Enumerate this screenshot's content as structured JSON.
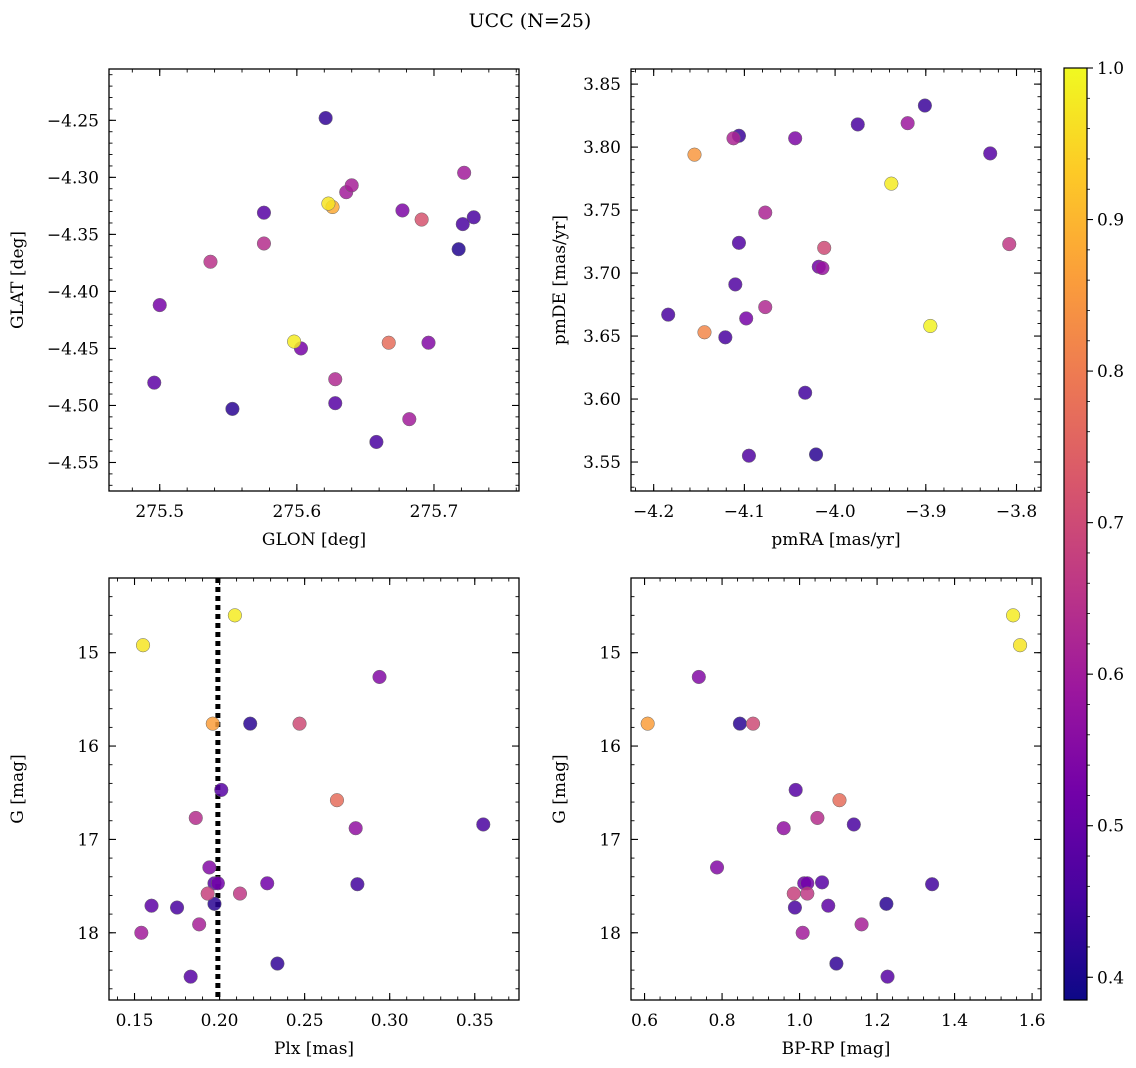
{
  "figure_title": "UCC (N=25)",
  "colorbar": {
    "min": 0.385,
    "max": 1.0,
    "ticks": [
      0.4,
      0.5,
      0.6,
      0.7,
      0.8,
      0.9,
      1.0
    ],
    "tick_labels": [
      "0.4",
      "0.5",
      "0.6",
      "0.7",
      "0.8",
      "0.9",
      "1.0"
    ],
    "colormap": "plasma",
    "stops": [
      "#0d0887",
      "#46039f",
      "#7201a8",
      "#9c179e",
      "#bd3786",
      "#d8576b",
      "#ed7953",
      "#fb9f3a",
      "#fdca26",
      "#f0f921"
    ]
  },
  "chart_data": [
    {
      "type": "scatter",
      "id": "glon-glat",
      "xlabel": "GLON [deg]",
      "ylabel": "GLAT [deg]",
      "xlim": [
        275.463,
        275.762
      ],
      "ylim": [
        -4.575,
        -4.205
      ],
      "y_inverted": false,
      "xticks": [
        275.5,
        275.6,
        275.7
      ],
      "xtick_labels": [
        "275.5",
        "275.6",
        "275.7"
      ],
      "yticks": [
        -4.25,
        -4.3,
        -4.35,
        -4.4,
        -4.45,
        -4.5,
        -4.55
      ],
      "ytick_labels": [
        "−4.25",
        "−4.30",
        "−4.35",
        "−4.40",
        "−4.45",
        "−4.50",
        "−4.55"
      ],
      "points": [
        {
          "x": 275.621,
          "y": -4.248,
          "p": 0.43
        },
        {
          "x": 275.64,
          "y": -4.307,
          "p": 0.61
        },
        {
          "x": 275.636,
          "y": -4.313,
          "p": 0.6
        },
        {
          "x": 275.623,
          "y": -4.323,
          "p": 0.97
        },
        {
          "x": 275.626,
          "y": -4.326,
          "p": 0.88
        },
        {
          "x": 275.722,
          "y": -4.296,
          "p": 0.6
        },
        {
          "x": 275.576,
          "y": -4.331,
          "p": 0.48
        },
        {
          "x": 275.677,
          "y": -4.329,
          "p": 0.54
        },
        {
          "x": 275.691,
          "y": -4.337,
          "p": 0.72
        },
        {
          "x": 275.729,
          "y": -4.335,
          "p": 0.46
        },
        {
          "x": 275.721,
          "y": -4.341,
          "p": 0.46
        },
        {
          "x": 275.576,
          "y": -4.358,
          "p": 0.64
        },
        {
          "x": 275.718,
          "y": -4.363,
          "p": 0.41
        },
        {
          "x": 275.537,
          "y": -4.374,
          "p": 0.65
        },
        {
          "x": 275.5,
          "y": -4.412,
          "p": 0.53
        },
        {
          "x": 275.598,
          "y": -4.444,
          "p": 0.98
        },
        {
          "x": 275.603,
          "y": -4.45,
          "p": 0.53
        },
        {
          "x": 275.667,
          "y": -4.445,
          "p": 0.77
        },
        {
          "x": 275.696,
          "y": -4.445,
          "p": 0.55
        },
        {
          "x": 275.496,
          "y": -4.48,
          "p": 0.49
        },
        {
          "x": 275.628,
          "y": -4.477,
          "p": 0.63
        },
        {
          "x": 275.628,
          "y": -4.498,
          "p": 0.48
        },
        {
          "x": 275.553,
          "y": -4.503,
          "p": 0.42
        },
        {
          "x": 275.682,
          "y": -4.512,
          "p": 0.6
        },
        {
          "x": 275.658,
          "y": -4.532,
          "p": 0.46
        }
      ]
    },
    {
      "type": "scatter",
      "id": "pmra-pmde",
      "xlabel": "pmRA [mas/yr]",
      "ylabel": "pmDE [mas/yr]",
      "xlim": [
        -4.225,
        -3.773
      ],
      "ylim": [
        3.527,
        3.862
      ],
      "y_inverted": false,
      "xticks": [
        -4.2,
        -4.1,
        -4.0,
        -3.9,
        -3.8
      ],
      "xtick_labels": [
        "−4.2",
        "−4.1",
        "−4.0",
        "−3.9",
        "−3.8"
      ],
      "yticks": [
        3.55,
        3.6,
        3.65,
        3.7,
        3.75,
        3.8,
        3.85
      ],
      "ytick_labels": [
        "3.55",
        "3.60",
        "3.65",
        "3.70",
        "3.75",
        "3.80",
        "3.85"
      ],
      "points": [
        {
          "x": -3.901,
          "y": 3.833,
          "p": 0.44
        },
        {
          "x": -3.975,
          "y": 3.818,
          "p": 0.46
        },
        {
          "x": -3.92,
          "y": 3.819,
          "p": 0.59
        },
        {
          "x": -4.106,
          "y": 3.809,
          "p": 0.44
        },
        {
          "x": -4.112,
          "y": 3.807,
          "p": 0.62
        },
        {
          "x": -4.044,
          "y": 3.807,
          "p": 0.54
        },
        {
          "x": -4.155,
          "y": 3.794,
          "p": 0.85
        },
        {
          "x": -3.829,
          "y": 3.795,
          "p": 0.48
        },
        {
          "x": -3.938,
          "y": 3.771,
          "p": 0.98
        },
        {
          "x": -4.077,
          "y": 3.748,
          "p": 0.62
        },
        {
          "x": -4.106,
          "y": 3.724,
          "p": 0.47
        },
        {
          "x": -3.808,
          "y": 3.723,
          "p": 0.66
        },
        {
          "x": -4.012,
          "y": 3.72,
          "p": 0.7
        },
        {
          "x": -4.018,
          "y": 3.705,
          "p": 0.52
        },
        {
          "x": -4.014,
          "y": 3.704,
          "p": 0.58
        },
        {
          "x": -4.11,
          "y": 3.691,
          "p": 0.47
        },
        {
          "x": -4.184,
          "y": 3.667,
          "p": 0.46
        },
        {
          "x": -4.077,
          "y": 3.673,
          "p": 0.63
        },
        {
          "x": -4.098,
          "y": 3.664,
          "p": 0.53
        },
        {
          "x": -3.895,
          "y": 3.658,
          "p": 0.99
        },
        {
          "x": -4.144,
          "y": 3.653,
          "p": 0.82
        },
        {
          "x": -4.121,
          "y": 3.649,
          "p": 0.46
        },
        {
          "x": -4.033,
          "y": 3.605,
          "p": 0.45
        },
        {
          "x": -4.021,
          "y": 3.556,
          "p": 0.42
        },
        {
          "x": -4.095,
          "y": 3.555,
          "p": 0.47
        }
      ]
    },
    {
      "type": "scatter",
      "id": "plx-g",
      "xlabel": "Plx [mas]",
      "ylabel": "G [mag]",
      "xlim": [
        0.135,
        0.376
      ],
      "ylim": [
        18.72,
        14.2
      ],
      "y_inverted": true,
      "xticks": [
        0.15,
        0.2,
        0.25,
        0.3,
        0.35
      ],
      "xtick_labels": [
        "0.15",
        "0.20",
        "0.25",
        "0.30",
        "0.35"
      ],
      "yticks": [
        15,
        16,
        17,
        18
      ],
      "ytick_labels": [
        "15",
        "16",
        "17",
        "18"
      ],
      "vline": {
        "x": 0.199,
        "style": "dotted"
      },
      "points": [
        {
          "x": 0.209,
          "y": 14.6,
          "p": 0.98
        },
        {
          "x": 0.155,
          "y": 14.92,
          "p": 0.97
        },
        {
          "x": 0.294,
          "y": 15.26,
          "p": 0.55
        },
        {
          "x": 0.196,
          "y": 15.76,
          "p": 0.86
        },
        {
          "x": 0.218,
          "y": 15.76,
          "p": 0.42
        },
        {
          "x": 0.247,
          "y": 15.76,
          "p": 0.7
        },
        {
          "x": 0.201,
          "y": 16.47,
          "p": 0.48
        },
        {
          "x": 0.269,
          "y": 16.58,
          "p": 0.77
        },
        {
          "x": 0.186,
          "y": 16.77,
          "p": 0.64
        },
        {
          "x": 0.355,
          "y": 16.84,
          "p": 0.46
        },
        {
          "x": 0.28,
          "y": 16.88,
          "p": 0.57
        },
        {
          "x": 0.194,
          "y": 17.3,
          "p": 0.55
        },
        {
          "x": 0.197,
          "y": 17.47,
          "p": 0.48
        },
        {
          "x": 0.199,
          "y": 17.47,
          "p": 0.52
        },
        {
          "x": 0.228,
          "y": 17.47,
          "p": 0.52
        },
        {
          "x": 0.281,
          "y": 17.48,
          "p": 0.45
        },
        {
          "x": 0.193,
          "y": 17.58,
          "p": 0.68
        },
        {
          "x": 0.212,
          "y": 17.58,
          "p": 0.66
        },
        {
          "x": 0.197,
          "y": 17.69,
          "p": 0.42
        },
        {
          "x": 0.16,
          "y": 17.71,
          "p": 0.49
        },
        {
          "x": 0.175,
          "y": 17.73,
          "p": 0.46
        },
        {
          "x": 0.188,
          "y": 17.91,
          "p": 0.61
        },
        {
          "x": 0.154,
          "y": 18.0,
          "p": 0.6
        },
        {
          "x": 0.234,
          "y": 18.33,
          "p": 0.43
        },
        {
          "x": 0.183,
          "y": 18.47,
          "p": 0.48
        }
      ]
    },
    {
      "type": "scatter",
      "id": "bprp-g",
      "xlabel": "BP-RP [mag]",
      "ylabel": "G [mag]",
      "xlim": [
        0.565,
        1.623
      ],
      "ylim": [
        18.72,
        14.2
      ],
      "y_inverted": true,
      "xticks": [
        0.6,
        0.8,
        1.0,
        1.2,
        1.4,
        1.6
      ],
      "xtick_labels": [
        "0.6",
        "0.8",
        "1.0",
        "1.2",
        "1.4",
        "1.6"
      ],
      "yticks": [
        15,
        16,
        17,
        18
      ],
      "ytick_labels": [
        "15",
        "16",
        "17",
        "18"
      ],
      "points": [
        {
          "x": 1.551,
          "y": 14.6,
          "p": 0.98
        },
        {
          "x": 1.569,
          "y": 14.92,
          "p": 0.97
        },
        {
          "x": 0.74,
          "y": 15.26,
          "p": 0.55
        },
        {
          "x": 0.608,
          "y": 15.76,
          "p": 0.86
        },
        {
          "x": 0.846,
          "y": 15.76,
          "p": 0.42
        },
        {
          "x": 0.88,
          "y": 15.76,
          "p": 0.7
        },
        {
          "x": 0.99,
          "y": 16.47,
          "p": 0.48
        },
        {
          "x": 1.103,
          "y": 16.58,
          "p": 0.77
        },
        {
          "x": 1.046,
          "y": 16.77,
          "p": 0.64
        },
        {
          "x": 1.14,
          "y": 16.84,
          "p": 0.46
        },
        {
          "x": 0.959,
          "y": 16.88,
          "p": 0.57
        },
        {
          "x": 0.787,
          "y": 17.3,
          "p": 0.55
        },
        {
          "x": 1.058,
          "y": 17.46,
          "p": 0.48
        },
        {
          "x": 1.012,
          "y": 17.47,
          "p": 0.52
        },
        {
          "x": 1.02,
          "y": 17.47,
          "p": 0.52
        },
        {
          "x": 1.342,
          "y": 17.48,
          "p": 0.45
        },
        {
          "x": 0.985,
          "y": 17.58,
          "p": 0.68
        },
        {
          "x": 1.02,
          "y": 17.58,
          "p": 0.66
        },
        {
          "x": 1.224,
          "y": 17.69,
          "p": 0.42
        },
        {
          "x": 1.074,
          "y": 17.71,
          "p": 0.49
        },
        {
          "x": 0.988,
          "y": 17.73,
          "p": 0.46
        },
        {
          "x": 1.16,
          "y": 17.91,
          "p": 0.61
        },
        {
          "x": 1.008,
          "y": 18.0,
          "p": 0.6
        },
        {
          "x": 1.095,
          "y": 18.33,
          "p": 0.43
        },
        {
          "x": 1.227,
          "y": 18.47,
          "p": 0.48
        }
      ]
    }
  ]
}
